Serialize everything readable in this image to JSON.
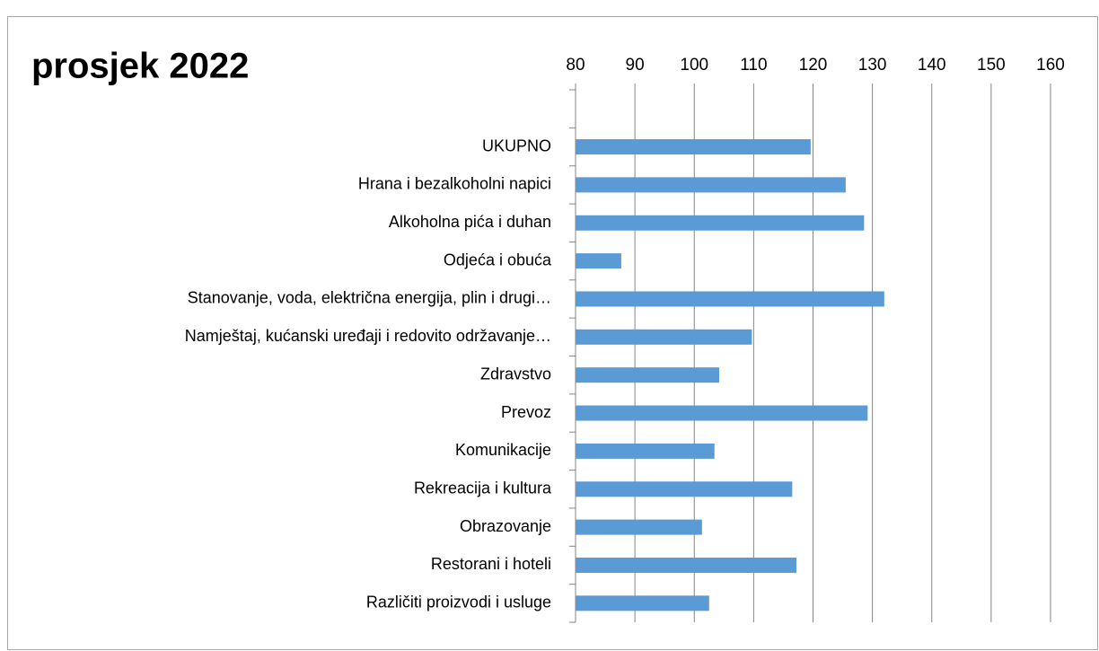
{
  "chart_data": {
    "type": "bar",
    "orientation": "horizontal",
    "title": "prosjek 2022",
    "categories": [
      null,
      "UKUPNO",
      "Hrana i bezalkoholni napici",
      "Alkoholna pića i duhan",
      "Odjeća i obuća",
      "Stanovanje, voda, električna energija, plin i drugi…",
      "Namještaj, kućanski uređaji i redovito održavanje…",
      "Zdravstvo",
      "Prevoz",
      "Komunikacije",
      "Rekreacija i kultura",
      "Obrazovanje",
      "Restorani i hoteli",
      "Različiti proizvodi i usluge"
    ],
    "values": [
      null,
      119.6,
      125.5,
      128.6,
      87.7,
      132,
      109.7,
      104.2,
      129.2,
      103.4,
      116.5,
      101.3,
      117.2,
      102.5
    ],
    "color": "#5b9bd5",
    "xlim": [
      80,
      160
    ],
    "xticks": [
      80,
      90,
      100,
      110,
      120,
      130,
      140,
      150,
      160
    ],
    "grid": true
  }
}
